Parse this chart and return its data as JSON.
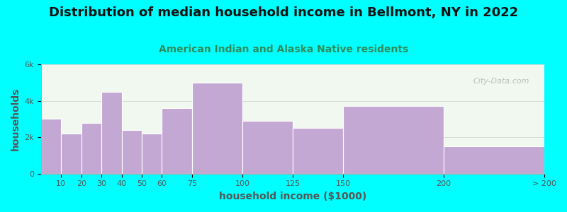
{
  "title": "Distribution of median household income in Bellmont, NY in 2022",
  "subtitle": "American Indian and Alaska Native residents",
  "xlabel": "household income ($1000)",
  "ylabel": "households",
  "background_outer": "#00FFFF",
  "bar_color": "#c4a8d4",
  "bar_edge_color": "#ffffff",
  "bin_edges": [
    0,
    10,
    20,
    30,
    40,
    50,
    60,
    75,
    100,
    125,
    150,
    200,
    250
  ],
  "values": [
    3000,
    2200,
    2800,
    4500,
    2400,
    2200,
    3600,
    5000,
    2900,
    2500,
    3700,
    1500
  ],
  "xtick_positions": [
    10,
    20,
    30,
    40,
    50,
    60,
    75,
    100,
    125,
    150,
    200
  ],
  "xtick_labels": [
    "10",
    "20",
    "30",
    "40",
    "50",
    "60",
    "75",
    "100",
    "125",
    "150",
    "200"
  ],
  "extra_tick_label": "> 200",
  "ylim": [
    0,
    6000
  ],
  "yticks": [
    0,
    2000,
    4000,
    6000
  ],
  "ytick_labels": [
    "0",
    "2k",
    "4k",
    "6k"
  ],
  "title_fontsize": 13,
  "subtitle_fontsize": 10,
  "axis_label_fontsize": 10,
  "tick_fontsize": 8,
  "title_color": "#111111",
  "subtitle_color": "#2e8b57",
  "axis_label_color": "#555555",
  "watermark": "City-Data.com",
  "grid_color": "#cccccc",
  "grid_linewidth": 0.5
}
